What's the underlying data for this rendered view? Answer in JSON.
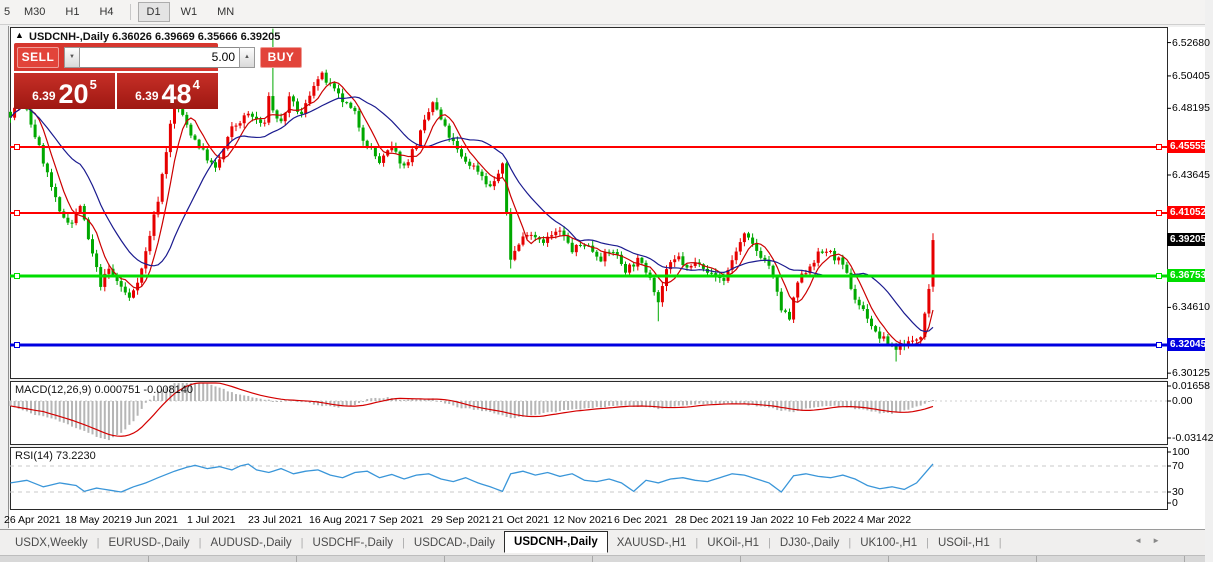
{
  "toolbar": {
    "timeframes": [
      "5",
      "M30",
      "H1",
      "H4",
      "D1",
      "W1",
      "MN"
    ],
    "active": "D1"
  },
  "chart": {
    "arrow_icon": "▲",
    "symbol_title": "USDCNH-,Daily",
    "quotes_line": "6.36026 6.39669 6.35666 6.39205",
    "ohlc": {
      "open": "6.36026",
      "high": "6.39669",
      "low": "6.35666",
      "close": "6.39205"
    },
    "axis_ticks": [
      {
        "text": "6.52680",
        "price": 6.5268
      },
      {
        "text": "6.50405",
        "price": 6.50405
      },
      {
        "text": "6.48195",
        "price": 6.48195
      },
      {
        "text": "6.43645",
        "price": 6.43645
      },
      {
        "text": "6.34610",
        "price": 6.3461
      },
      {
        "text": "6.30125",
        "price": 6.30125
      }
    ],
    "levels": [
      {
        "text": "6.45555",
        "price": 6.45555,
        "color": "#ff0000",
        "thickness": 2
      },
      {
        "text": "6.41052",
        "price": 6.41052,
        "color": "#ff0000",
        "thickness": 2
      },
      {
        "text": "6.36753",
        "price": 6.36753,
        "color": "#00dd00",
        "thickness": 3
      },
      {
        "text": "6.32045",
        "price": 6.32045,
        "color": "#0000e0",
        "thickness": 3
      }
    ],
    "current_price": {
      "text": "6.39205",
      "price": 6.39205,
      "bg": "#000000"
    }
  },
  "trade": {
    "sell_label": "SELL",
    "buy_label": "BUY",
    "volume": "5.00",
    "down_arrow": "▼",
    "up_arrow": "▲",
    "sell_quote": {
      "prefix": "6.39",
      "big": "20",
      "sup": "5"
    },
    "buy_quote": {
      "prefix": "6.39",
      "big": "48",
      "sup": "4"
    }
  },
  "macd": {
    "label": "MACD(12,26,9) 0.000751 -0.008140",
    "axis": [
      {
        "text": "0.01658",
        "y": 386
      },
      {
        "text": "0.00",
        "y": 401
      },
      {
        "text": "-0.03142",
        "y": 438
      }
    ]
  },
  "rsi": {
    "label": "RSI(14) 73.2230",
    "axis": [
      {
        "text": "100",
        "y": 452
      },
      {
        "text": "70",
        "y": 466
      },
      {
        "text": "30",
        "y": 492
      },
      {
        "text": "0",
        "y": 503
      }
    ],
    "guide_levels": [
      70,
      30
    ]
  },
  "dates": [
    "26 Apr 2021",
    "18 May 2021",
    "9 Jun 2021",
    "1 Jul 2021",
    "23 Jul 2021",
    "16 Aug 2021",
    "7 Sep 2021",
    "29 Sep 2021",
    "21 Oct 2021",
    "12 Nov 2021",
    "6 Dec 2021",
    "28 Dec 2021",
    "19 Jan 2022",
    "10 Feb 2022",
    "4 Mar 2022"
  ],
  "tabs": {
    "items": [
      "USDX,Weekly",
      "EURUSD-,Daily",
      "AUDUSD-,Daily",
      "USDCHF-,Daily",
      "USDCAD-,Daily",
      "USDCNH-,Daily",
      "XAUUSD-,H1",
      "UKOil-,H1",
      "DJ30-,Daily",
      "UK100-,H1",
      "USOil-,H1"
    ],
    "active_index": 5,
    "scroll_left": "◄",
    "scroll_right": "►"
  },
  "colors": {
    "bull_candle": "#e60000",
    "bear_candle": "#00a800",
    "ma_fast": "#cc0000",
    "ma_slow": "#1b1b8f",
    "macd_bar": "#b6b6b6",
    "macd_signal": "#d40000",
    "rsi_line": "#3a96d9",
    "guide_dash": "#c8c8c8"
  },
  "series": {
    "candles_count": 226,
    "price_anchors": [
      [
        0,
        6.478
      ],
      [
        3,
        6.488
      ],
      [
        7,
        6.455
      ],
      [
        9,
        6.437
      ],
      [
        12,
        6.41
      ],
      [
        15,
        6.404
      ],
      [
        17,
        6.416
      ],
      [
        19,
        6.392
      ],
      [
        22,
        6.362
      ],
      [
        24,
        6.372
      ],
      [
        26,
        6.364
      ],
      [
        29,
        6.352
      ],
      [
        32,
        6.372
      ],
      [
        36,
        6.42
      ],
      [
        40,
        6.487
      ],
      [
        44,
        6.465
      ],
      [
        47,
        6.452
      ],
      [
        50,
        6.44
      ],
      [
        54,
        6.468
      ],
      [
        58,
        6.478
      ],
      [
        62,
        6.47
      ],
      [
        63,
        6.492
      ],
      [
        64,
        6.48
      ],
      [
        66,
        6.472
      ],
      [
        68,
        6.488
      ],
      [
        71,
        6.477
      ],
      [
        74,
        6.499
      ],
      [
        76,
        6.504
      ],
      [
        80,
        6.49
      ],
      [
        84,
        6.478
      ],
      [
        86,
        6.462
      ],
      [
        90,
        6.445
      ],
      [
        93,
        6.455
      ],
      [
        96,
        6.442
      ],
      [
        99,
        6.458
      ],
      [
        103,
        6.486
      ],
      [
        106,
        6.468
      ],
      [
        110,
        6.448
      ],
      [
        114,
        6.44
      ],
      [
        117,
        6.428
      ],
      [
        120,
        6.442
      ],
      [
        122,
        6.38
      ],
      [
        126,
        6.398
      ],
      [
        130,
        6.392
      ],
      [
        134,
        6.398
      ],
      [
        137,
        6.385
      ],
      [
        140,
        6.39
      ],
      [
        144,
        6.38
      ],
      [
        147,
        6.385
      ],
      [
        150,
        6.372
      ],
      [
        153,
        6.378
      ],
      [
        156,
        6.368
      ],
      [
        158,
        6.35
      ],
      [
        160,
        6.372
      ],
      [
        163,
        6.38
      ],
      [
        165,
        6.372
      ],
      [
        168,
        6.378
      ],
      [
        171,
        6.368
      ],
      [
        174,
        6.365
      ],
      [
        177,
        6.385
      ],
      [
        179,
        6.395
      ],
      [
        182,
        6.385
      ],
      [
        185,
        6.375
      ],
      [
        188,
        6.345
      ],
      [
        190,
        6.338
      ],
      [
        192,
        6.363
      ],
      [
        195,
        6.375
      ],
      [
        197,
        6.382
      ],
      [
        199,
        6.385
      ],
      [
        202,
        6.378
      ],
      [
        204,
        6.368
      ],
      [
        206,
        6.352
      ],
      [
        209,
        6.34
      ],
      [
        211,
        6.328
      ],
      [
        214,
        6.322
      ],
      [
        216,
        6.318
      ],
      [
        218,
        6.322
      ],
      [
        220,
        6.322
      ],
      [
        222,
        6.328
      ],
      [
        224,
        6.36
      ],
      [
        225,
        6.39205
      ]
    ],
    "wick_extensions": {
      "64": 0.046,
      "122": -0.006,
      "158": -0.013,
      "216": -0.008
    },
    "last_candle": {
      "open": 6.36026,
      "high": 6.39669,
      "low": 6.35666,
      "close": 6.39205
    },
    "macd_anchors": [
      [
        0,
        -0.004
      ],
      [
        5,
        -0.01
      ],
      [
        10,
        -0.014
      ],
      [
        14,
        -0.019
      ],
      [
        18,
        -0.024
      ],
      [
        22,
        -0.03
      ],
      [
        24,
        -0.0314
      ],
      [
        27,
        -0.026
      ],
      [
        30,
        -0.016
      ],
      [
        33,
        -0.002
      ],
      [
        36,
        0.008
      ],
      [
        40,
        0.014
      ],
      [
        43,
        0.0166
      ],
      [
        46,
        0.016
      ],
      [
        50,
        0.012
      ],
      [
        54,
        0.007
      ],
      [
        58,
        0.0035
      ],
      [
        62,
        0.0015
      ],
      [
        65,
        -0.0005
      ],
      [
        68,
        0.0012
      ],
      [
        72,
        -0.001
      ],
      [
        76,
        -0.004
      ],
      [
        80,
        -0.0052
      ],
      [
        84,
        -0.003
      ],
      [
        88,
        0.0025
      ],
      [
        92,
        0.0028
      ],
      [
        96,
        0.0008
      ],
      [
        100,
        0.0015
      ],
      [
        103,
        0.0022
      ],
      [
        106,
        -0.0022
      ],
      [
        110,
        -0.0055
      ],
      [
        114,
        -0.0075
      ],
      [
        118,
        -0.0095
      ],
      [
        122,
        -0.014
      ],
      [
        126,
        -0.012
      ],
      [
        130,
        -0.01
      ],
      [
        134,
        -0.008
      ],
      [
        137,
        -0.007
      ],
      [
        140,
        -0.006
      ],
      [
        144,
        -0.0048
      ],
      [
        148,
        -0.004
      ],
      [
        152,
        -0.0042
      ],
      [
        156,
        -0.005
      ],
      [
        158,
        -0.006
      ],
      [
        161,
        -0.0048
      ],
      [
        164,
        -0.0036
      ],
      [
        167,
        -0.0028
      ],
      [
        170,
        -0.0024
      ],
      [
        173,
        -0.0022
      ],
      [
        176,
        -0.0018
      ],
      [
        179,
        -0.0028
      ],
      [
        182,
        -0.004
      ],
      [
        185,
        -0.0055
      ],
      [
        188,
        -0.0075
      ],
      [
        191,
        -0.0085
      ],
      [
        194,
        -0.0065
      ],
      [
        197,
        -0.005
      ],
      [
        200,
        -0.004
      ],
      [
        203,
        -0.0042
      ],
      [
        206,
        -0.006
      ],
      [
        209,
        -0.008
      ],
      [
        212,
        -0.0095
      ],
      [
        215,
        -0.01
      ],
      [
        218,
        -0.008
      ],
      [
        221,
        -0.005
      ],
      [
        225,
        0.000751
      ]
    ],
    "rsi_anchors": [
      [
        0,
        44
      ],
      [
        4,
        48
      ],
      [
        8,
        38
      ],
      [
        12,
        44
      ],
      [
        16,
        40
      ],
      [
        18,
        31
      ],
      [
        21,
        36
      ],
      [
        24,
        33
      ],
      [
        27,
        30
      ],
      [
        30,
        38
      ],
      [
        33,
        44
      ],
      [
        36,
        52
      ],
      [
        40,
        62
      ],
      [
        43,
        68
      ],
      [
        45,
        71
      ],
      [
        48,
        66
      ],
      [
        51,
        69
      ],
      [
        54,
        64
      ],
      [
        56,
        70
      ],
      [
        58,
        73
      ],
      [
        60,
        64
      ],
      [
        63,
        60
      ],
      [
        66,
        66
      ],
      [
        69,
        58
      ],
      [
        72,
        62
      ],
      [
        75,
        64
      ],
      [
        78,
        56
      ],
      [
        81,
        52
      ],
      [
        84,
        60
      ],
      [
        87,
        62
      ],
      [
        90,
        52
      ],
      [
        93,
        57
      ],
      [
        96,
        50
      ],
      [
        99,
        56
      ],
      [
        102,
        58
      ],
      [
        105,
        50
      ],
      [
        108,
        46
      ],
      [
        111,
        52
      ],
      [
        114,
        44
      ],
      [
        117,
        38
      ],
      [
        120,
        31
      ],
      [
        122,
        58
      ],
      [
        125,
        62
      ],
      [
        128,
        56
      ],
      [
        131,
        60
      ],
      [
        134,
        54
      ],
      [
        137,
        58
      ],
      [
        140,
        48
      ],
      [
        143,
        46
      ],
      [
        146,
        50
      ],
      [
        149,
        44
      ],
      [
        152,
        31
      ],
      [
        155,
        48
      ],
      [
        158,
        44
      ],
      [
        161,
        50
      ],
      [
        164,
        52
      ],
      [
        167,
        48
      ],
      [
        170,
        46
      ],
      [
        173,
        52
      ],
      [
        176,
        58
      ],
      [
        179,
        56
      ],
      [
        182,
        50
      ],
      [
        185,
        44
      ],
      [
        188,
        30
      ],
      [
        191,
        55
      ],
      [
        194,
        58
      ],
      [
        197,
        54
      ],
      [
        200,
        52
      ],
      [
        203,
        56
      ],
      [
        206,
        50
      ],
      [
        209,
        40
      ],
      [
        212,
        35
      ],
      [
        215,
        38
      ],
      [
        218,
        34
      ],
      [
        221,
        44
      ],
      [
        225,
        73.223
      ]
    ]
  }
}
